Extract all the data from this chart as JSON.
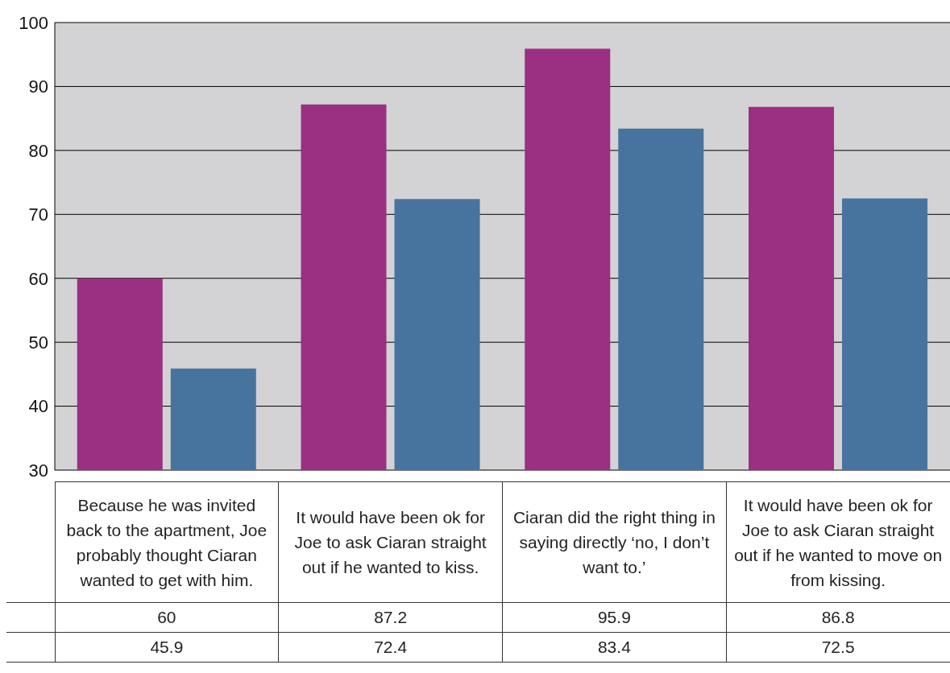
{
  "chart_data": {
    "type": "bar",
    "categories": [
      "Because he was invited back to the apartment, Joe probably thought Ciaran wanted to get with him.",
      "It would have been ok for Joe to ask Ciaran straight out if he wanted to kiss.",
      "Ciaran did the right thing in saying directly ‘no, I don’t want to.’",
      "It would have been ok for Joe to ask Ciaran straight out if he wanted to move on from kissing."
    ],
    "series": [
      {
        "color": "#9b2f82",
        "values": [
          60,
          87.2,
          95.9,
          86.8
        ]
      },
      {
        "color": "#47739f",
        "values": [
          45.9,
          72.4,
          83.4,
          72.5
        ]
      }
    ],
    "ylim": [
      30,
      100
    ],
    "yticks": [
      30,
      40,
      50,
      60,
      70,
      80,
      90,
      100
    ],
    "grid": "y",
    "data_labels": true,
    "tick_labels": "y"
  }
}
